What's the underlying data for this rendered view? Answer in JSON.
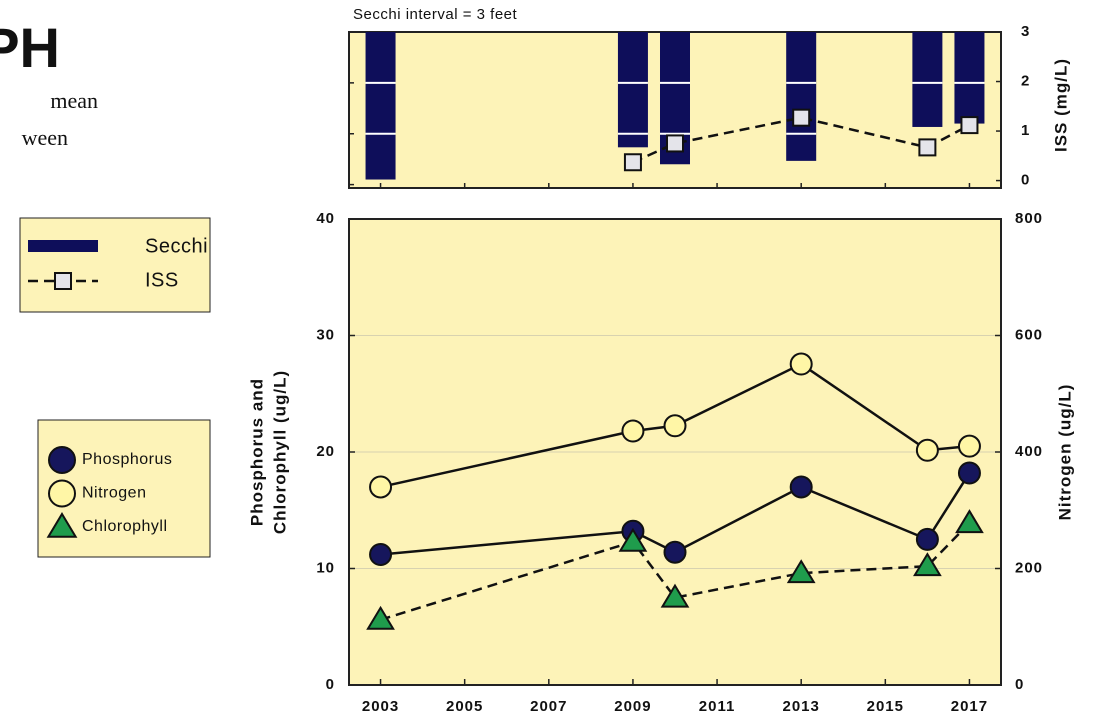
{
  "header": {
    "title": "PH",
    "lines": [
      "mean",
      "ween"
    ]
  },
  "chart_data": [
    {
      "type": "secchi_iss",
      "annotation": "Secchi interval = 3 feet",
      "secchi_interval": 3,
      "x": [
        2003,
        2009,
        2010,
        2013,
        2016,
        2017
      ],
      "xlim": [
        2002.25,
        2017.75
      ],
      "xticks": [
        2003,
        2005,
        2007,
        2009,
        2011,
        2013,
        2015,
        2017
      ],
      "ylim": [
        0,
        9.2
      ],
      "y_inverted": true,
      "y2lim": [
        -0.15,
        3
      ],
      "y2ticks": [
        0,
        1,
        2,
        3
      ],
      "y2label": "ISS (mg/L)",
      "series": [
        {
          "name": "Secchi",
          "color": "#0e0e5a",
          "values": [
            8.7,
            6.8,
            7.8,
            7.6,
            5.6,
            5.4
          ]
        },
        {
          "name": "ISS",
          "color": "#e4e4ea",
          "axis": "y2",
          "dashed": true,
          "values": [
            null,
            0.37,
            0.75,
            1.27,
            0.67,
            1.12
          ]
        }
      ]
    },
    {
      "type": "line",
      "x": [
        2003,
        2009,
        2010,
        2013,
        2016,
        2017
      ],
      "xlim": [
        2002.25,
        2017.75
      ],
      "xticks": [
        2003,
        2005,
        2007,
        2009,
        2011,
        2013,
        2015,
        2017
      ],
      "ylim": [
        0,
        40
      ],
      "yticks": [
        0,
        10,
        20,
        30,
        40
      ],
      "y2lim": [
        0,
        800
      ],
      "y2ticks": [
        0,
        200,
        400,
        600,
        800
      ],
      "ylabel": [
        "Phosphorus and",
        "Chlorophyll (ug/L)"
      ],
      "y2label": "Nitrogen (ug/L)",
      "grid": true,
      "series": [
        {
          "name": "Phosphorus",
          "color": "#16165c",
          "marker": "circle",
          "values": [
            11.2,
            13.2,
            11.4,
            17.0,
            12.5,
            18.2
          ]
        },
        {
          "name": "Nitrogen",
          "color": "#fff6a6",
          "marker": "circle",
          "axis": "y2",
          "values": [
            340,
            436,
            445,
            551,
            403,
            410
          ]
        },
        {
          "name": "Chlorophyll",
          "color": "#1f9c4c",
          "marker": "triangle",
          "dashed": true,
          "values": [
            5.6,
            12.3,
            7.5,
            9.6,
            10.2,
            13.9
          ]
        }
      ]
    }
  ]
}
